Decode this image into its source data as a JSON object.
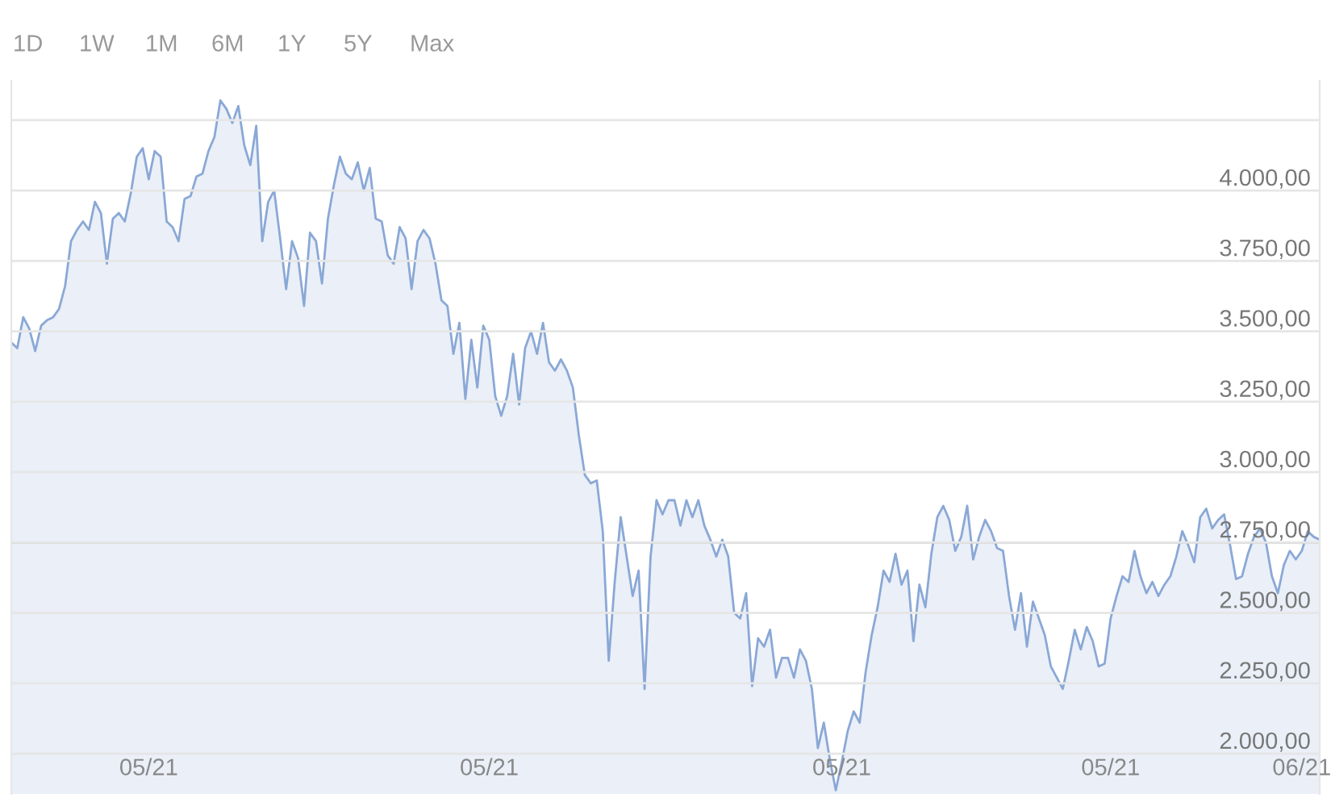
{
  "chart_data": {
    "type": "area",
    "categories": [
      null,
      null,
      null,
      null,
      null,
      null,
      null,
      null,
      null,
      null,
      null,
      null,
      null,
      null,
      null,
      null,
      null,
      null,
      null,
      null,
      null,
      null,
      null,
      "05/21",
      null,
      null,
      null,
      null,
      null,
      null,
      null,
      null,
      null,
      null,
      null,
      null,
      null,
      null,
      null,
      null,
      null,
      null,
      null,
      null,
      null,
      null,
      null,
      null,
      null,
      null,
      null,
      null,
      null,
      null,
      null,
      null,
      null,
      null,
      null,
      null,
      null,
      null,
      null,
      null,
      null,
      null,
      null,
      null,
      null,
      null,
      null,
      null,
      null,
      null,
      null,
      null,
      null,
      null,
      null,
      null,
      "05/21",
      null,
      null,
      null,
      null,
      null,
      null,
      null,
      null,
      null,
      null,
      null,
      null,
      null,
      null,
      null,
      null,
      null,
      null,
      null,
      null,
      null,
      null,
      null,
      null,
      null,
      null,
      null,
      null,
      null,
      null,
      null,
      null,
      null,
      null,
      null,
      null,
      null,
      null,
      null,
      null,
      null,
      null,
      null,
      null,
      null,
      null,
      null,
      null,
      null,
      null,
      null,
      null,
      null,
      null,
      null,
      null,
      null,
      null,
      "05/21",
      null,
      null,
      null,
      null,
      null,
      null,
      null,
      null,
      null,
      null,
      null,
      null,
      null,
      null,
      null,
      null,
      null,
      null,
      null,
      null,
      null,
      null,
      null,
      null,
      null,
      null,
      null,
      null,
      null,
      null,
      null,
      null,
      null,
      null,
      null,
      null,
      null,
      null,
      null,
      null,
      null,
      null,
      null,
      null,
      "05/21",
      null,
      null,
      null,
      null,
      null,
      null,
      null,
      null,
      null,
      null,
      null,
      null,
      null,
      null,
      null,
      null,
      null,
      null,
      null,
      null,
      null,
      null,
      null,
      null,
      null,
      null,
      null,
      null,
      null,
      null,
      null,
      "06/21",
      null,
      null,
      null
    ],
    "series": [
      {
        "color": "#8aa8d6",
        "values": [
          3460,
          3440,
          3550,
          3510,
          3430,
          3520,
          3540,
          3550,
          3580,
          3660,
          3820,
          3860,
          3890,
          3860,
          3960,
          3920,
          3740,
          3900,
          3920,
          3890,
          3990,
          4120,
          4150,
          4040,
          4140,
          4120,
          3890,
          3870,
          3820,
          3970,
          3980,
          4050,
          4060,
          4140,
          4190,
          4320,
          4290,
          4240,
          4300,
          4160,
          4090,
          4230,
          3820,
          3960,
          4000,
          3830,
          3650,
          3820,
          3760,
          3590,
          3850,
          3820,
          3670,
          3900,
          4020,
          4120,
          4060,
          4040,
          4100,
          4000,
          4080,
          3900,
          3890,
          3770,
          3740,
          3870,
          3830,
          3650,
          3820,
          3860,
          3830,
          3740,
          3610,
          3590,
          3420,
          3530,
          3260,
          3470,
          3300,
          3520,
          3470,
          3270,
          3200,
          3270,
          3420,
          3240,
          3440,
          3500,
          3420,
          3530,
          3390,
          3360,
          3400,
          3360,
          3300,
          3130,
          2990,
          2960,
          2970,
          2790,
          2330,
          2610,
          2840,
          2700,
          2560,
          2650,
          2230,
          2700,
          2900,
          2850,
          2900,
          2900,
          2810,
          2900,
          2840,
          2900,
          2810,
          2760,
          2700,
          2760,
          2700,
          2500,
          2480,
          2570,
          2240,
          2410,
          2380,
          2440,
          2270,
          2340,
          2340,
          2270,
          2370,
          2330,
          2230,
          2020,
          2110,
          1980,
          1870,
          1970,
          2080,
          2150,
          2110,
          2290,
          2420,
          2520,
          2650,
          2610,
          2710,
          2600,
          2650,
          2400,
          2600,
          2520,
          2710,
          2840,
          2880,
          2830,
          2720,
          2770,
          2880,
          2690,
          2770,
          2830,
          2790,
          2730,
          2720,
          2560,
          2440,
          2570,
          2380,
          2540,
          2480,
          2420,
          2310,
          2270,
          2230,
          2330,
          2440,
          2370,
          2450,
          2400,
          2310,
          2320,
          2480,
          2560,
          2630,
          2610,
          2720,
          2630,
          2570,
          2610,
          2560,
          2600,
          2630,
          2700,
          2790,
          2740,
          2680,
          2840,
          2870,
          2800,
          2830,
          2850,
          2740,
          2620,
          2630,
          2710,
          2770,
          2800,
          2750,
          2630,
          2570,
          2670,
          2720,
          2690,
          2720,
          2790,
          2770,
          2760
        ]
      }
    ],
    "ylim": [
      1857,
      4390
    ],
    "yticks": [
      {
        "value": 2000,
        "label": "2.000,00"
      },
      {
        "value": 2250,
        "label": "2.250,00"
      },
      {
        "value": 2500,
        "label": "2.500,00"
      },
      {
        "value": 2750,
        "label": "2.750,00"
      },
      {
        "value": 3000,
        "label": "3.000,00"
      },
      {
        "value": 3250,
        "label": "3.250,00"
      },
      {
        "value": 3500,
        "label": "3.500,00"
      },
      {
        "value": 3750,
        "label": "3.750,00"
      },
      {
        "value": 4000,
        "label": "4.000,00"
      },
      {
        "value": 4250,
        "label": null
      }
    ],
    "grid": "y",
    "ref_lines": [
      {
        "axis": "y",
        "value": 2750,
        "color": "#aaaaaa"
      }
    ],
    "annotations": [
      "1D",
      "1W",
      "1M",
      "6M",
      "1Y",
      "5Y",
      "Max"
    ]
  }
}
